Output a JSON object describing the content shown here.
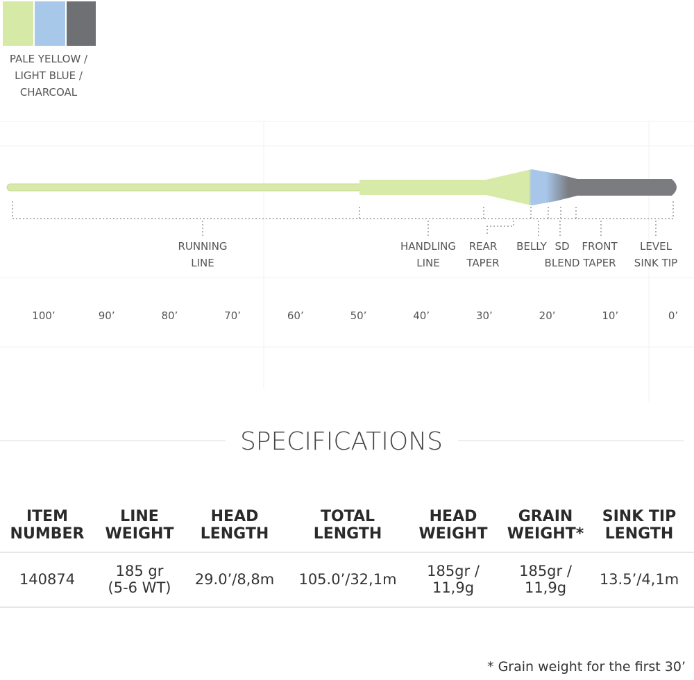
{
  "color_label": [
    "PALE YELLOW /",
    "LIGHT BLUE /",
    "CHARCOAL"
  ],
  "diagram": {
    "sections": [
      [
        "RUNNING",
        "LINE"
      ],
      [
        "HANDLING",
        "LINE"
      ],
      [
        "REAR",
        "TAPER"
      ],
      [
        "BELLY"
      ],
      [
        "SD",
        "BLEND"
      ],
      [
        "FRONT",
        "TAPER"
      ],
      [
        "LEVEL",
        "SINK TIP"
      ]
    ],
    "distance_labels": [
      "100’",
      "90’",
      "80’",
      "70’",
      "60’",
      "50’",
      "40’",
      "30’",
      "20’",
      "10’",
      "0’"
    ]
  },
  "specifications": {
    "title": "SPECIFICATIONS",
    "columns": [
      [
        "ITEM",
        "NUMBER"
      ],
      [
        "LINE",
        "WEIGHT"
      ],
      [
        "HEAD",
        "LENGTH"
      ],
      [
        "TOTAL",
        "LENGTH"
      ],
      [
        "HEAD",
        "WEIGHT"
      ],
      [
        "GRAIN",
        "WEIGHT*"
      ],
      [
        "SINK TIP",
        "LENGTH"
      ]
    ],
    "rows": [
      [
        [
          "140874"
        ],
        [
          "185 gr",
          "(5-6 WT)"
        ],
        [
          "29.0’/8,8m"
        ],
        [
          "105.0’/32,1m"
        ],
        [
          "185gr /",
          "11,9g"
        ],
        [
          "185gr /",
          "11,9g"
        ],
        [
          "13.5’/4,1m"
        ]
      ]
    ]
  },
  "footnote": "* Grain weight for the first 30’"
}
